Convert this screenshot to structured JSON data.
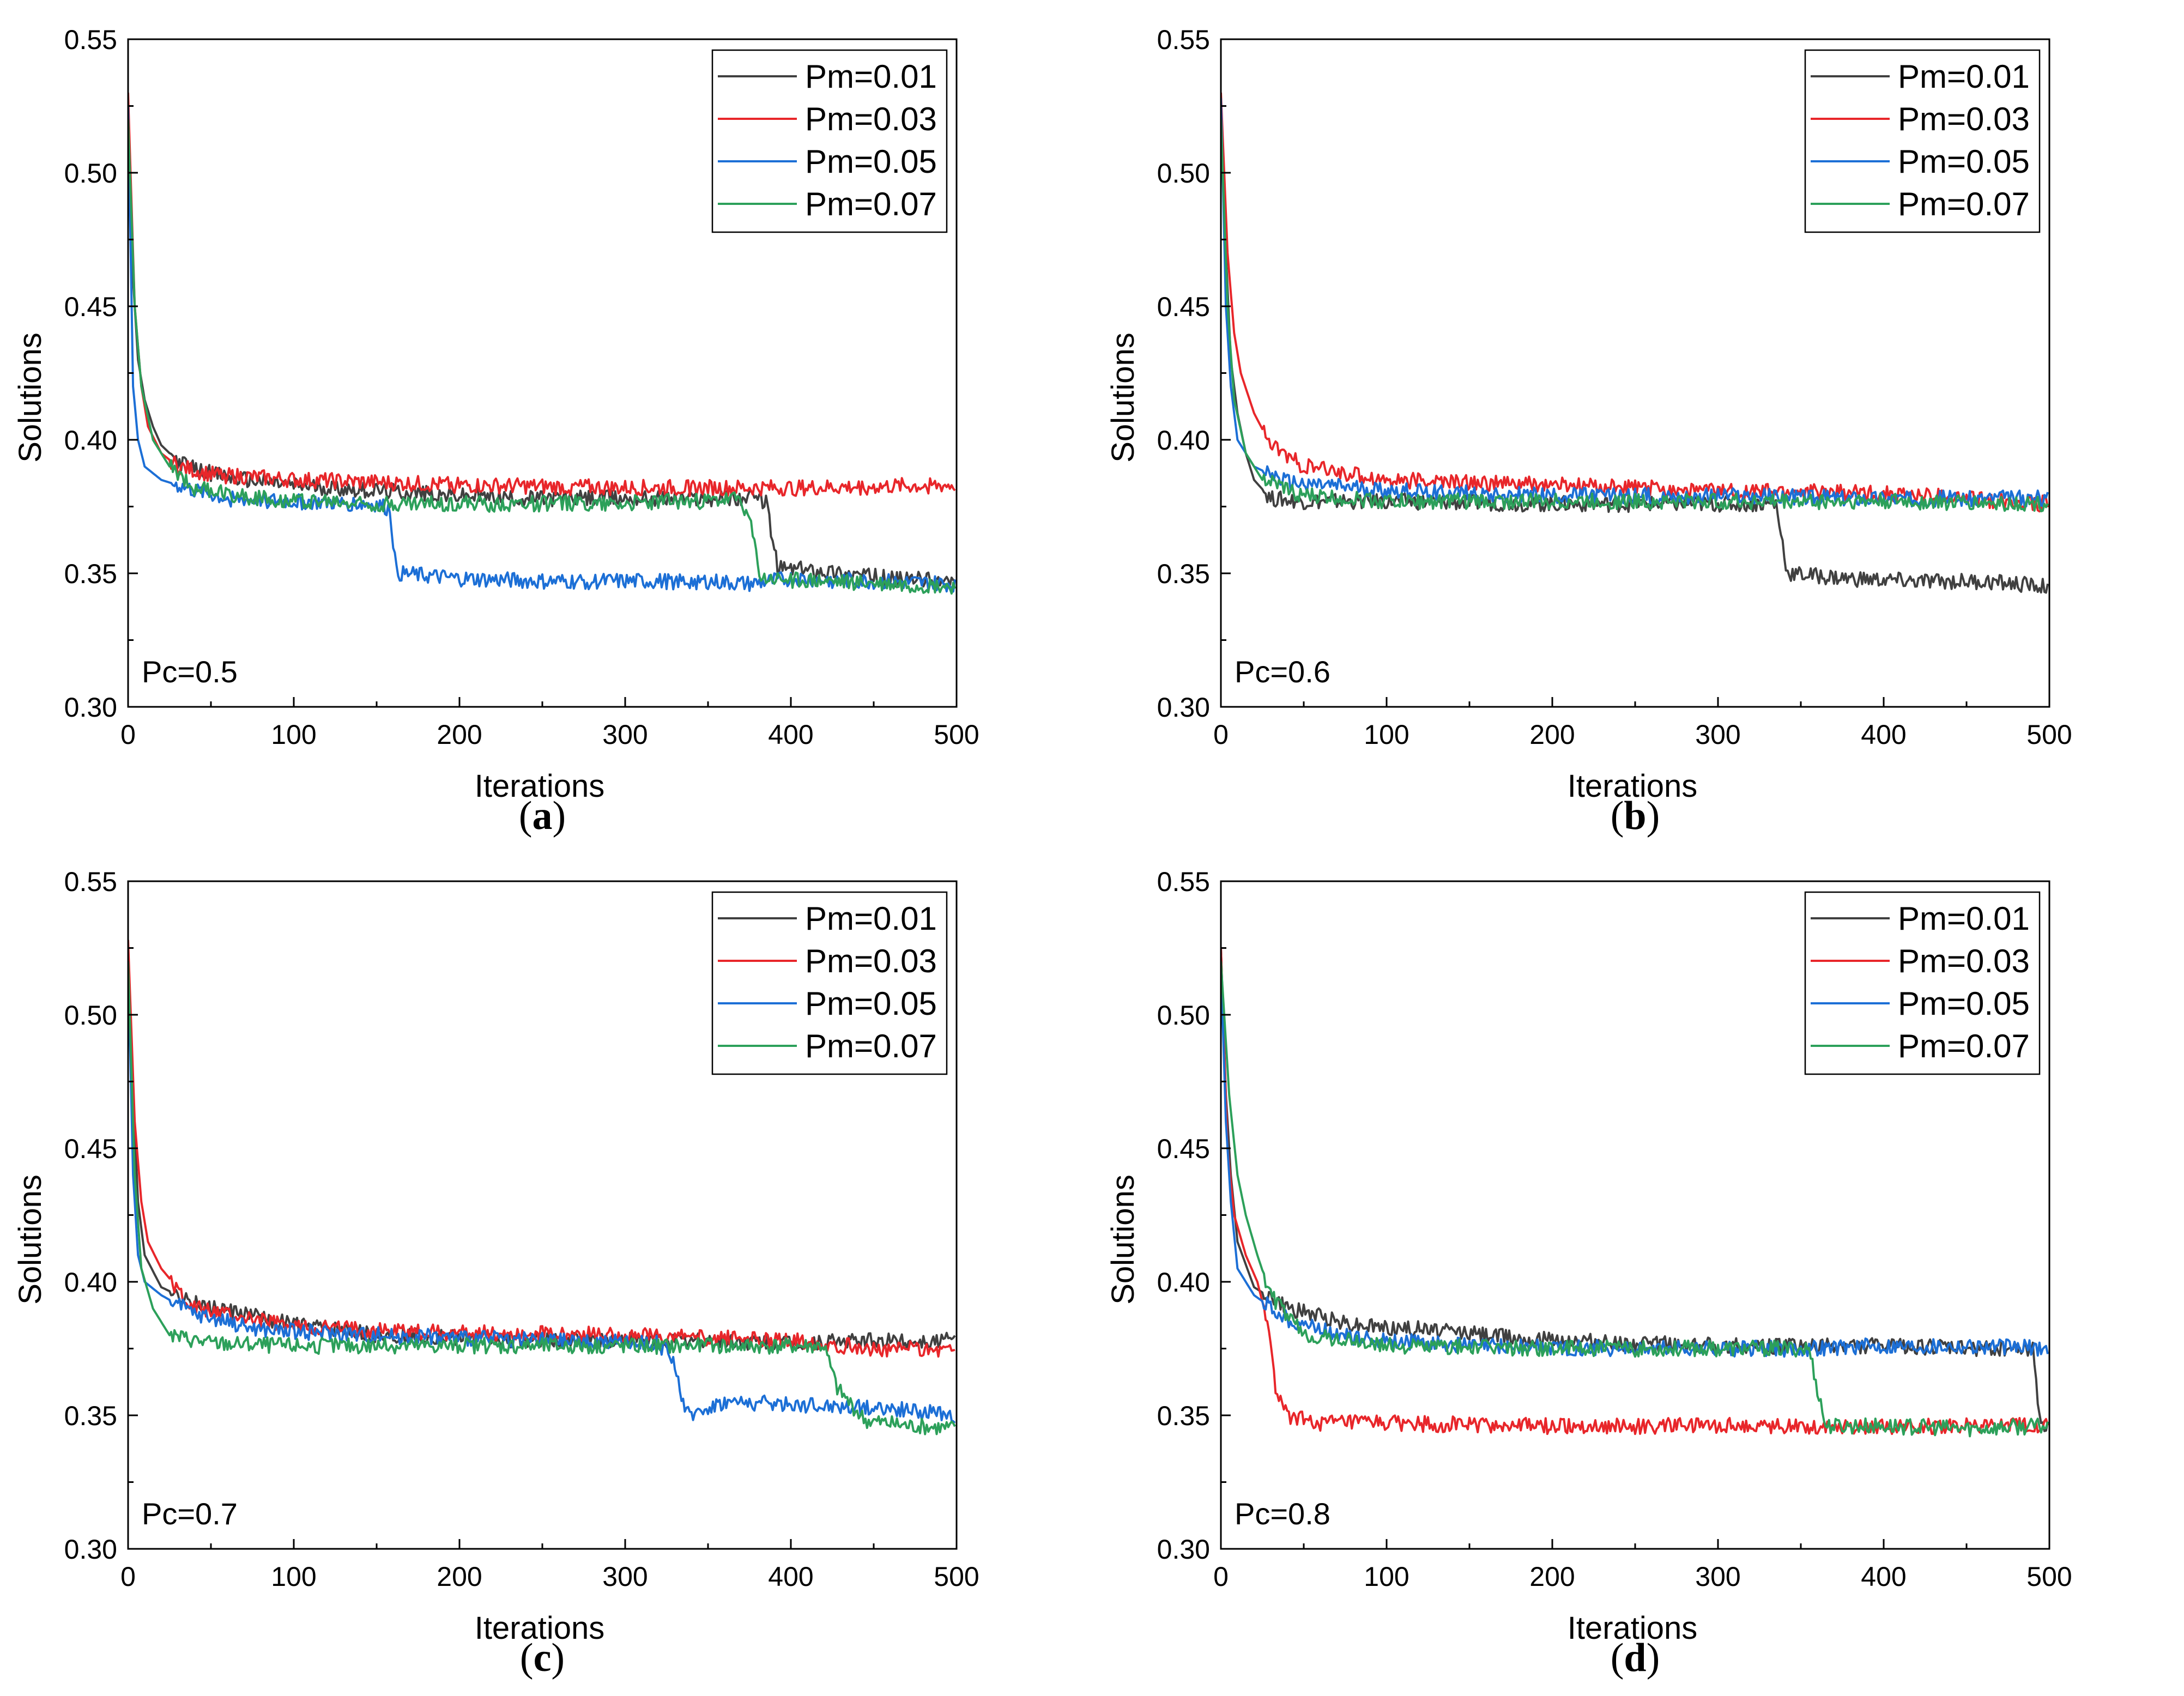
{
  "chart_data": [
    {
      "type": "line",
      "panel_label": "a",
      "annotation": "Pc=0.5",
      "xlabel": "Iterations",
      "ylabel": "Solutions",
      "xlim": [
        0,
        500
      ],
      "ylim": [
        0.3,
        0.55
      ],
      "xticks": [
        "0",
        "100",
        "200",
        "300",
        "400",
        "500"
      ],
      "yticks": [
        "0.30",
        "0.35",
        "0.40",
        "0.45",
        "0.50",
        "0.55"
      ],
      "legend_position": "top-right",
      "series": [
        {
          "name": "Pm=0.01",
          "color": "#404040",
          "points": [
            [
              0,
              0.525
            ],
            [
              3,
              0.46
            ],
            [
              6,
              0.43
            ],
            [
              10,
              0.415
            ],
            [
              15,
              0.405
            ],
            [
              20,
              0.398
            ],
            [
              30,
              0.392
            ],
            [
              40,
              0.389
            ],
            [
              60,
              0.386
            ],
            [
              100,
              0.383
            ],
            [
              150,
              0.381
            ],
            [
              200,
              0.379
            ],
            [
              250,
              0.378
            ],
            [
              300,
              0.378
            ],
            [
              350,
              0.378
            ],
            [
              375,
              0.378
            ],
            [
              385,
              0.377
            ],
            [
              392,
              0.352
            ],
            [
              420,
              0.351
            ],
            [
              460,
              0.348
            ],
            [
              499,
              0.347
            ]
          ]
        },
        {
          "name": "Pm=0.03",
          "color": "#e8262a",
          "points": [
            [
              0,
              0.53
            ],
            [
              4,
              0.45
            ],
            [
              8,
              0.42
            ],
            [
              12,
              0.405
            ],
            [
              20,
              0.395
            ],
            [
              30,
              0.39
            ],
            [
              50,
              0.387
            ],
            [
              100,
              0.385
            ],
            [
              200,
              0.383
            ],
            [
              300,
              0.382
            ],
            [
              400,
              0.382
            ],
            [
              499,
              0.383
            ]
          ]
        },
        {
          "name": "Pm=0.05",
          "color": "#1c6fd6",
          "points": [
            [
              0,
              0.525
            ],
            [
              3,
              0.42
            ],
            [
              6,
              0.4
            ],
            [
              10,
              0.39
            ],
            [
              20,
              0.385
            ],
            [
              40,
              0.381
            ],
            [
              60,
              0.378
            ],
            [
              100,
              0.377
            ],
            [
              150,
              0.376
            ],
            [
              158,
              0.374
            ],
            [
              162,
              0.35
            ],
            [
              200,
              0.348
            ],
            [
              250,
              0.347
            ],
            [
              300,
              0.347
            ],
            [
              350,
              0.347
            ],
            [
              375,
              0.346
            ],
            [
              400,
              0.348
            ],
            [
              450,
              0.347
            ],
            [
              499,
              0.346
            ]
          ]
        },
        {
          "name": "Pm=0.07",
          "color": "#2ca05a",
          "points": [
            [
              0,
              0.52
            ],
            [
              4,
              0.45
            ],
            [
              8,
              0.42
            ],
            [
              15,
              0.4
            ],
            [
              25,
              0.39
            ],
            [
              40,
              0.382
            ],
            [
              80,
              0.378
            ],
            [
              150,
              0.376
            ],
            [
              250,
              0.376
            ],
            [
              350,
              0.377
            ],
            [
              370,
              0.378
            ],
            [
              375,
              0.37
            ],
            [
              382,
              0.348
            ],
            [
              420,
              0.347
            ],
            [
              460,
              0.346
            ],
            [
              499,
              0.345
            ]
          ]
        }
      ]
    },
    {
      "type": "line",
      "panel_label": "b",
      "annotation": "Pc=0.6",
      "xlabel": "Iterations",
      "ylabel": "Solutions",
      "xlim": [
        0,
        500
      ],
      "ylim": [
        0.3,
        0.55
      ],
      "xticks": [
        "0",
        "100",
        "200",
        "300",
        "400",
        "500"
      ],
      "yticks": [
        "0.30",
        "0.35",
        "0.40",
        "0.45",
        "0.50",
        "0.55"
      ],
      "legend_position": "top-right",
      "series": [
        {
          "name": "Pm=0.01",
          "color": "#404040",
          "points": [
            [
              0,
              0.525
            ],
            [
              3,
              0.47
            ],
            [
              6,
              0.43
            ],
            [
              10,
              0.41
            ],
            [
              15,
              0.395
            ],
            [
              20,
              0.385
            ],
            [
              30,
              0.378
            ],
            [
              50,
              0.377
            ],
            [
              100,
              0.377
            ],
            [
              200,
              0.376
            ],
            [
              300,
              0.376
            ],
            [
              335,
              0.376
            ],
            [
              342,
              0.35
            ],
            [
              380,
              0.348
            ],
            [
              420,
              0.347
            ],
            [
              460,
              0.347
            ],
            [
              499,
              0.345
            ]
          ]
        },
        {
          "name": "Pm=0.03",
          "color": "#e8262a",
          "points": [
            [
              0,
              0.53
            ],
            [
              4,
              0.47
            ],
            [
              8,
              0.44
            ],
            [
              12,
              0.425
            ],
            [
              20,
              0.41
            ],
            [
              30,
              0.398
            ],
            [
              50,
              0.39
            ],
            [
              100,
              0.385
            ],
            [
              200,
              0.383
            ],
            [
              300,
              0.381
            ],
            [
              400,
              0.38
            ],
            [
              499,
              0.376
            ]
          ]
        },
        {
          "name": "Pm=0.05",
          "color": "#1c6fd6",
          "points": [
            [
              0,
              0.528
            ],
            [
              3,
              0.45
            ],
            [
              6,
              0.42
            ],
            [
              10,
              0.4
            ],
            [
              20,
              0.39
            ],
            [
              40,
              0.384
            ],
            [
              100,
              0.381
            ],
            [
              200,
              0.379
            ],
            [
              300,
              0.379
            ],
            [
              400,
              0.378
            ],
            [
              499,
              0.378
            ]
          ]
        },
        {
          "name": "Pm=0.07",
          "color": "#2ca05a",
          "points": [
            [
              0,
              0.52
            ],
            [
              4,
              0.45
            ],
            [
              8,
              0.415
            ],
            [
              15,
              0.395
            ],
            [
              25,
              0.385
            ],
            [
              50,
              0.379
            ],
            [
              100,
              0.377
            ],
            [
              200,
              0.377
            ],
            [
              300,
              0.377
            ],
            [
              400,
              0.377
            ],
            [
              499,
              0.376
            ]
          ]
        }
      ]
    },
    {
      "type": "line",
      "panel_label": "c",
      "annotation": "Pc=0.7",
      "xlabel": "Iterations",
      "ylabel": "Solutions",
      "xlim": [
        0,
        500
      ],
      "ylim": [
        0.3,
        0.55
      ],
      "xticks": [
        "0",
        "100",
        "200",
        "300",
        "400",
        "500"
      ],
      "yticks": [
        "0.30",
        "0.35",
        "0.40",
        "0.45",
        "0.50",
        "0.55"
      ],
      "legend_position": "top-right",
      "series": [
        {
          "name": "Pm=0.01",
          "color": "#404040",
          "points": [
            [
              0,
              0.525
            ],
            [
              3,
              0.47
            ],
            [
              6,
              0.43
            ],
            [
              10,
              0.41
            ],
            [
              20,
              0.398
            ],
            [
              40,
              0.392
            ],
            [
              60,
              0.389
            ],
            [
              100,
              0.384
            ],
            [
              150,
              0.38
            ],
            [
              200,
              0.379
            ],
            [
              250,
              0.378
            ],
            [
              300,
              0.378
            ],
            [
              350,
              0.378
            ],
            [
              400,
              0.377
            ],
            [
              450,
              0.378
            ],
            [
              499,
              0.378
            ]
          ]
        },
        {
          "name": "Pm=0.03",
          "color": "#e8262a",
          "points": [
            [
              0,
              0.528
            ],
            [
              4,
              0.46
            ],
            [
              8,
              0.43
            ],
            [
              12,
              0.415
            ],
            [
              20,
              0.405
            ],
            [
              40,
              0.39
            ],
            [
              100,
              0.383
            ],
            [
              200,
              0.381
            ],
            [
              300,
              0.38
            ],
            [
              400,
              0.378
            ],
            [
              450,
              0.375
            ],
            [
              499,
              0.375
            ]
          ]
        },
        {
          "name": "Pm=0.05",
          "color": "#1c6fd6",
          "points": [
            [
              0,
              0.52
            ],
            [
              3,
              0.44
            ],
            [
              6,
              0.41
            ],
            [
              10,
              0.4
            ],
            [
              20,
              0.395
            ],
            [
              40,
              0.388
            ],
            [
              80,
              0.382
            ],
            [
              150,
              0.38
            ],
            [
              250,
              0.378
            ],
            [
              320,
              0.377
            ],
            [
              330,
              0.37
            ],
            [
              336,
              0.35
            ],
            [
              360,
              0.355
            ],
            [
              400,
              0.354
            ],
            [
              450,
              0.353
            ],
            [
              499,
              0.35
            ]
          ]
        },
        {
          "name": "Pm=0.07",
          "color": "#2ca05a",
          "points": [
            [
              0,
              0.52
            ],
            [
              4,
              0.44
            ],
            [
              8,
              0.405
            ],
            [
              15,
              0.39
            ],
            [
              25,
              0.38
            ],
            [
              50,
              0.377
            ],
            [
              100,
              0.376
            ],
            [
              200,
              0.376
            ],
            [
              300,
              0.376
            ],
            [
              400,
              0.376
            ],
            [
              420,
              0.376
            ],
            [
              428,
              0.36
            ],
            [
              445,
              0.348
            ],
            [
              470,
              0.346
            ],
            [
              499,
              0.345
            ]
          ]
        }
      ]
    },
    {
      "type": "line",
      "panel_label": "d",
      "annotation": "Pc=0.8",
      "xlabel": "Iterations",
      "ylabel": "Solutions",
      "xlim": [
        0,
        500
      ],
      "ylim": [
        0.3,
        0.55
      ],
      "xticks": [
        "0",
        "100",
        "200",
        "300",
        "400",
        "500"
      ],
      "yticks": [
        "0.30",
        "0.35",
        "0.40",
        "0.45",
        "0.50",
        "0.55"
      ],
      "legend_position": "top-right",
      "series": [
        {
          "name": "Pm=0.01",
          "color": "#404040",
          "points": [
            [
              0,
              0.525
            ],
            [
              3,
              0.47
            ],
            [
              6,
              0.44
            ],
            [
              10,
              0.415
            ],
            [
              20,
              0.398
            ],
            [
              40,
              0.39
            ],
            [
              80,
              0.384
            ],
            [
              150,
              0.381
            ],
            [
              200,
              0.378
            ],
            [
              300,
              0.376
            ],
            [
              400,
              0.376
            ],
            [
              450,
              0.375
            ],
            [
              490,
              0.375
            ],
            [
              494,
              0.35
            ],
            [
              499,
              0.345
            ]
          ]
        },
        {
          "name": "Pm=0.03",
          "color": "#e8262a",
          "points": [
            [
              0,
              0.525
            ],
            [
              4,
              0.45
            ],
            [
              8,
              0.425
            ],
            [
              15,
              0.41
            ],
            [
              22,
              0.4
            ],
            [
              28,
              0.385
            ],
            [
              33,
              0.36
            ],
            [
              40,
              0.35
            ],
            [
              60,
              0.347
            ],
            [
              100,
              0.347
            ],
            [
              200,
              0.346
            ],
            [
              300,
              0.346
            ],
            [
              400,
              0.346
            ],
            [
              499,
              0.346
            ]
          ]
        },
        {
          "name": "Pm=0.05",
          "color": "#1c6fd6",
          "points": [
            [
              0,
              0.52
            ],
            [
              3,
              0.46
            ],
            [
              6,
              0.43
            ],
            [
              10,
              0.405
            ],
            [
              20,
              0.395
            ],
            [
              40,
              0.386
            ],
            [
              80,
              0.379
            ],
            [
              150,
              0.376
            ],
            [
              250,
              0.375
            ],
            [
              350,
              0.375
            ],
            [
              400,
              0.376
            ],
            [
              450,
              0.376
            ],
            [
              499,
              0.375
            ]
          ]
        },
        {
          "name": "Pm=0.07",
          "color": "#2ca05a",
          "points": [
            [
              0,
              0.52
            ],
            [
              5,
              0.47
            ],
            [
              10,
              0.44
            ],
            [
              15,
              0.425
            ],
            [
              22,
              0.41
            ],
            [
              30,
              0.395
            ],
            [
              50,
              0.38
            ],
            [
              100,
              0.376
            ],
            [
              200,
              0.375
            ],
            [
              300,
              0.375
            ],
            [
              355,
              0.375
            ],
            [
              360,
              0.36
            ],
            [
              365,
              0.346
            ],
            [
              400,
              0.346
            ],
            [
              450,
              0.345
            ],
            [
              499,
              0.346
            ]
          ]
        }
      ]
    }
  ]
}
